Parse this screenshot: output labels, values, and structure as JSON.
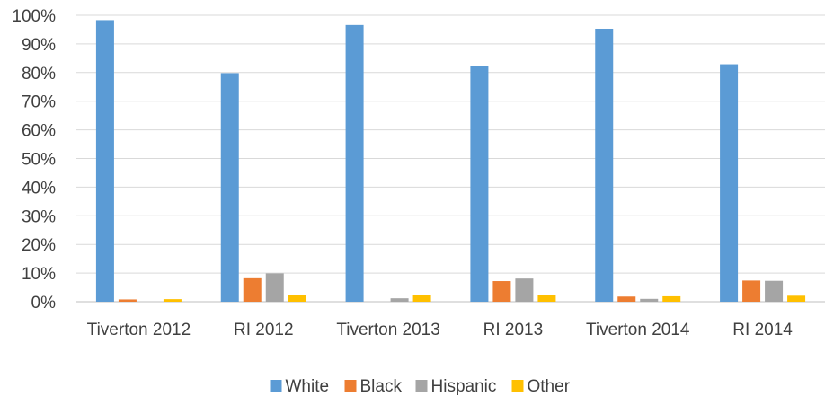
{
  "chart_data": {
    "type": "bar",
    "title": "",
    "xlabel": "",
    "ylabel": "",
    "ylim": [
      0,
      100
    ],
    "y_ticks": [
      "0%",
      "10%",
      "20%",
      "30%",
      "40%",
      "50%",
      "60%",
      "70%",
      "80%",
      "90%",
      "100%"
    ],
    "y_unit": "%",
    "grid": true,
    "legend_position": "bottom",
    "categories": [
      "Tiverton 2012",
      "RI 2012",
      "Tiverton 2013",
      "RI 2013",
      "Tiverton 2014",
      "RI 2014"
    ],
    "series": [
      {
        "name": "White",
        "color": "#5b9bd5",
        "values": [
          98.3,
          79.8,
          96.6,
          82.2,
          95.3,
          82.9
        ]
      },
      {
        "name": "Black",
        "color": "#ed7d31",
        "values": [
          0.8,
          8.2,
          0,
          7.2,
          1.8,
          7.4
        ]
      },
      {
        "name": "Hispanic",
        "color": "#a5a5a5",
        "values": [
          0,
          9.9,
          1.2,
          8.1,
          1.0,
          7.3
        ]
      },
      {
        "name": "Other",
        "color": "#ffc000",
        "values": [
          0.9,
          2.2,
          2.2,
          2.2,
          1.9,
          2.1
        ]
      }
    ]
  }
}
